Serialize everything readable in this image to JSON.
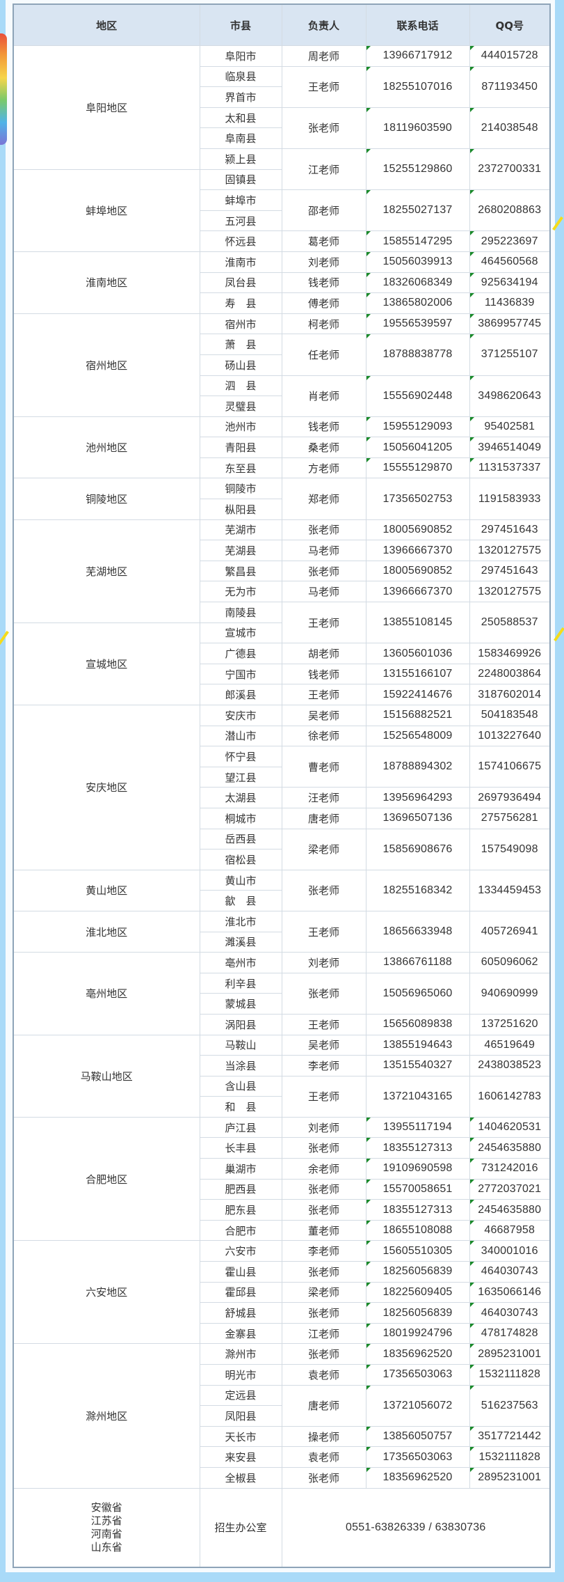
{
  "header": {
    "region": "地区",
    "city": "市县",
    "person": "负责人",
    "phone": "联系电话",
    "qq": "QQ号"
  },
  "regions": [
    {
      "name": "阜阳地区",
      "cities": [
        "阜阳市",
        "临泉县",
        "界首市",
        "太和县",
        "阜南县",
        "颍上县"
      ]
    },
    {
      "name": "蚌埠地区",
      "cities": [
        "固镇县",
        "蚌埠市",
        "五河县",
        "怀远县"
      ]
    },
    {
      "name": "淮南地区",
      "cities": [
        "淮南市",
        "凤台县",
        "寿　县"
      ]
    },
    {
      "name": "宿州地区",
      "cities": [
        "宿州市",
        "萧　县",
        "砀山县",
        "泗　县",
        "灵璧县"
      ]
    },
    {
      "name": "池州地区",
      "cities": [
        "池州市",
        "青阳县",
        "东至县"
      ]
    },
    {
      "name": "铜陵地区",
      "cities": [
        "铜陵市",
        "枞阳县"
      ]
    },
    {
      "name": "芜湖地区",
      "cities": [
        "芜湖市",
        "芜湖县",
        "繁昌县",
        "无为市",
        "南陵县"
      ]
    },
    {
      "name": "宣城地区",
      "cities": [
        "宣城市",
        "广德县",
        "宁国市",
        "郎溪县"
      ]
    },
    {
      "name": "安庆地区",
      "cities": [
        "安庆市",
        "潜山市",
        "怀宁县",
        "望江县",
        "太湖县",
        "桐城市",
        "岳西县",
        "宿松县"
      ]
    },
    {
      "name": "黄山地区",
      "cities": [
        "黄山市",
        "歙　县"
      ]
    },
    {
      "name": "淮北地区",
      "cities": [
        "淮北市",
        "濉溪县"
      ]
    },
    {
      "name": "亳州地区",
      "cities": [
        "亳州市",
        "利辛县",
        "蒙城县",
        "涡阳县"
      ]
    },
    {
      "name": "马鞍山地区",
      "cities": [
        "马鞍山",
        "当涂县",
        "含山县",
        "和　县"
      ]
    },
    {
      "name": "合肥地区",
      "cities": [
        "庐江县",
        "长丰县",
        "巢湖市",
        "肥西县",
        "肥东县",
        "合肥市"
      ]
    },
    {
      "name": "六安地区",
      "cities": [
        "六安市",
        "霍山县",
        "霍邱县",
        "舒城县",
        "金寨县"
      ]
    },
    {
      "name": "滁州地区",
      "cities": [
        "滁州市",
        "明光市",
        "定远县",
        "凤阳县",
        "天长市",
        "来安县",
        "全椒县"
      ]
    }
  ],
  "contacts": [
    {
      "person": "周老师",
      "phone": "13966717912",
      "qq": "444015728",
      "cities": [
        "阜阳市"
      ],
      "marked": true
    },
    {
      "person": "王老师",
      "phone": "18255107016",
      "qq": "871193450",
      "cities": [
        "临泉县",
        "界首市"
      ],
      "marked": true
    },
    {
      "person": "张老师",
      "phone": "18119603590",
      "qq": "214038548",
      "cities": [
        "太和县",
        "阜南县"
      ],
      "marked": true
    },
    {
      "person": "江老师",
      "phone": "15255129860",
      "qq": "2372700331",
      "cities": [
        "颍上县",
        "固镇县"
      ],
      "marked": true
    },
    {
      "person": "邵老师",
      "phone": "18255027137",
      "qq": "2680208863",
      "cities": [
        "蚌埠市",
        "五河县"
      ],
      "marked": true
    },
    {
      "person": "葛老师",
      "phone": "15855147295",
      "qq": "295223697",
      "cities": [
        "怀远县"
      ],
      "marked": true
    },
    {
      "person": "刘老师",
      "phone": "15056039913",
      "qq": "464560568",
      "cities": [
        "淮南市"
      ],
      "marked": true
    },
    {
      "person": "钱老师",
      "phone": "18326068349",
      "qq": "925634194",
      "cities": [
        "凤台县"
      ],
      "marked": true
    },
    {
      "person": "傅老师",
      "phone": "13865802006",
      "qq": "11436839",
      "cities": [
        "寿　县"
      ],
      "marked": true
    },
    {
      "person": "柯老师",
      "phone": "19556539597",
      "qq": "3869957745",
      "cities": [
        "宿州市"
      ],
      "marked": true
    },
    {
      "person": "任老师",
      "phone": "18788838778",
      "qq": "371255107",
      "cities": [
        "萧　县",
        "砀山县"
      ],
      "marked": true
    },
    {
      "person": "肖老师",
      "phone": "15556902448",
      "qq": "3498620643",
      "cities": [
        "泗　县",
        "灵璧县"
      ],
      "marked": true
    },
    {
      "person": "钱老师",
      "phone": "15955129093",
      "qq": "95402581",
      "cities": [
        "池州市"
      ],
      "marked": true
    },
    {
      "person": "桑老师",
      "phone": "15056041205",
      "qq": "3946514049",
      "cities": [
        "青阳县"
      ],
      "marked": true
    },
    {
      "person": "方老师",
      "phone": "15555129870",
      "qq": "1131537337",
      "cities": [
        "东至县"
      ],
      "marked": true
    },
    {
      "person": "郑老师",
      "phone": "17356502753",
      "qq": "1191583933",
      "cities": [
        "铜陵市",
        "枞阳县"
      ],
      "marked": false
    },
    {
      "person": "张老师",
      "phone": "18005690852",
      "qq": "297451643",
      "cities": [
        "芜湖市"
      ],
      "marked": false
    },
    {
      "person": "马老师",
      "phone": "13966667370",
      "qq": "1320127575",
      "cities": [
        "芜湖县"
      ],
      "marked": false
    },
    {
      "person": "张老师",
      "phone": "18005690852",
      "qq": "297451643",
      "cities": [
        "繁昌县"
      ],
      "marked": false
    },
    {
      "person": "马老师",
      "phone": "13966667370",
      "qq": "1320127575",
      "cities": [
        "无为市"
      ],
      "marked": false
    },
    {
      "person": "王老师",
      "phone": "13855108145",
      "qq": "250588537",
      "cities": [
        "南陵县",
        "宣城市"
      ],
      "marked": false
    },
    {
      "person": "胡老师",
      "phone": "13605601036",
      "qq": "1583469926",
      "cities": [
        "广德县"
      ],
      "marked": false
    },
    {
      "person": "钱老师",
      "phone": "13155166107",
      "qq": "2248003864",
      "cities": [
        "宁国市"
      ],
      "marked": false
    },
    {
      "person": "王老师",
      "phone": "15922414676",
      "qq": "3187602014",
      "cities": [
        "郎溪县"
      ],
      "marked": false
    },
    {
      "person": "吴老师",
      "phone": "15156882521",
      "qq": "504183548",
      "cities": [
        "安庆市"
      ],
      "marked": false
    },
    {
      "person": "徐老师",
      "phone": "15256548009",
      "qq": "1013227640",
      "cities": [
        "潜山市"
      ],
      "marked": false
    },
    {
      "person": "曹老师",
      "phone": "18788894302",
      "qq": "1574106675",
      "cities": [
        "怀宁县",
        "望江县"
      ],
      "marked": false
    },
    {
      "person": "汪老师",
      "phone": "13956964293",
      "qq": "2697936494",
      "cities": [
        "太湖县"
      ],
      "marked": false
    },
    {
      "person": "唐老师",
      "phone": "13696507136",
      "qq": "275756281",
      "cities": [
        "桐城市"
      ],
      "marked": false
    },
    {
      "person": "梁老师",
      "phone": "15856908676",
      "qq": "157549098",
      "cities": [
        "岳西县",
        "宿松县"
      ],
      "marked": false
    },
    {
      "person": "张老师",
      "phone": "18255168342",
      "qq": "1334459453",
      "cities": [
        "黄山市",
        "歙　县"
      ],
      "marked": false
    },
    {
      "person": "王老师",
      "phone": "18656633948",
      "qq": "405726941",
      "cities": [
        "淮北市",
        "濉溪县"
      ],
      "marked": false
    },
    {
      "person": "刘老师",
      "phone": "13866761188",
      "qq": "605096062",
      "cities": [
        "亳州市"
      ],
      "marked": false
    },
    {
      "person": "张老师",
      "phone": "15056965060",
      "qq": "940690999",
      "cities": [
        "利辛县",
        "蒙城县"
      ],
      "marked": false
    },
    {
      "person": "王老师",
      "phone": "15656089838",
      "qq": "137251620",
      "cities": [
        "涡阳县"
      ],
      "marked": false
    },
    {
      "person": "吴老师",
      "phone": "13855194643",
      "qq": "46519649",
      "cities": [
        "马鞍山"
      ],
      "marked": false
    },
    {
      "person": "李老师",
      "phone": "13515540327",
      "qq": "2438038523",
      "cities": [
        "当涂县"
      ],
      "marked": false
    },
    {
      "person": "王老师",
      "phone": "13721043165",
      "qq": "1606142783",
      "cities": [
        "含山县",
        "和　县"
      ],
      "marked": false
    },
    {
      "person": "刘老师",
      "phone": "13955117194",
      "qq": "1404620531",
      "cities": [
        "庐江县"
      ],
      "marked": true
    },
    {
      "person": "张老师",
      "phone": "18355127313",
      "qq": "2454635880",
      "cities": [
        "长丰县"
      ],
      "marked": true
    },
    {
      "person": "余老师",
      "phone": "19109690598",
      "qq": "731242016",
      "cities": [
        "巢湖市"
      ],
      "marked": true
    },
    {
      "person": "张老师",
      "phone": "15570058651",
      "qq": "2772037021",
      "cities": [
        "肥西县"
      ],
      "marked": true
    },
    {
      "person": "张老师",
      "phone": "18355127313",
      "qq": "2454635880",
      "cities": [
        "肥东县"
      ],
      "marked": true
    },
    {
      "person": "董老师",
      "phone": "18655108088",
      "qq": "46687958",
      "cities": [
        "合肥市"
      ],
      "marked": true
    },
    {
      "person": "李老师",
      "phone": "15605510305",
      "qq": "340001016",
      "cities": [
        "六安市"
      ],
      "marked": true
    },
    {
      "person": "张老师",
      "phone": "18256056839",
      "qq": "464030743",
      "cities": [
        "霍山县"
      ],
      "marked": true
    },
    {
      "person": "梁老师",
      "phone": "18225609405",
      "qq": "1635066146",
      "cities": [
        "霍邱县"
      ],
      "marked": true
    },
    {
      "person": "张老师",
      "phone": "18256056839",
      "qq": "464030743",
      "cities": [
        "舒城县"
      ],
      "marked": true
    },
    {
      "person": "江老师",
      "phone": "18019924796",
      "qq": "478174828",
      "cities": [
        "金寨县"
      ],
      "marked": true
    },
    {
      "person": "张老师",
      "phone": "18356962520",
      "qq": "2895231001",
      "cities": [
        "滁州市"
      ],
      "marked": true
    },
    {
      "person": "袁老师",
      "phone": "17356503063",
      "qq": "1532111828",
      "cities": [
        "明光市"
      ],
      "marked": true
    },
    {
      "person": "唐老师",
      "phone": "13721056072",
      "qq": "516237563",
      "cities": [
        "定远县",
        "凤阳县"
      ],
      "marked": true
    },
    {
      "person": "操老师",
      "phone": "13856050757",
      "qq": "3517721442",
      "cities": [
        "天长市"
      ],
      "marked": true
    },
    {
      "person": "袁老师",
      "phone": "17356503063",
      "qq": "1532111828",
      "cities": [
        "来安县"
      ],
      "marked": true
    },
    {
      "person": "张老师",
      "phone": "18356962520",
      "qq": "2895231001",
      "cities": [
        "全椒县"
      ],
      "marked": true
    }
  ],
  "footer": {
    "provinces": [
      "安徽省",
      "江苏省",
      "河南省",
      "山东省"
    ],
    "office": "招生办公室",
    "phone": "0551-63826339 / 63830736"
  },
  "colors": {
    "background": "#a9daf8",
    "header_bg": "#d9e5f2",
    "marker": "#1a8a2a"
  }
}
